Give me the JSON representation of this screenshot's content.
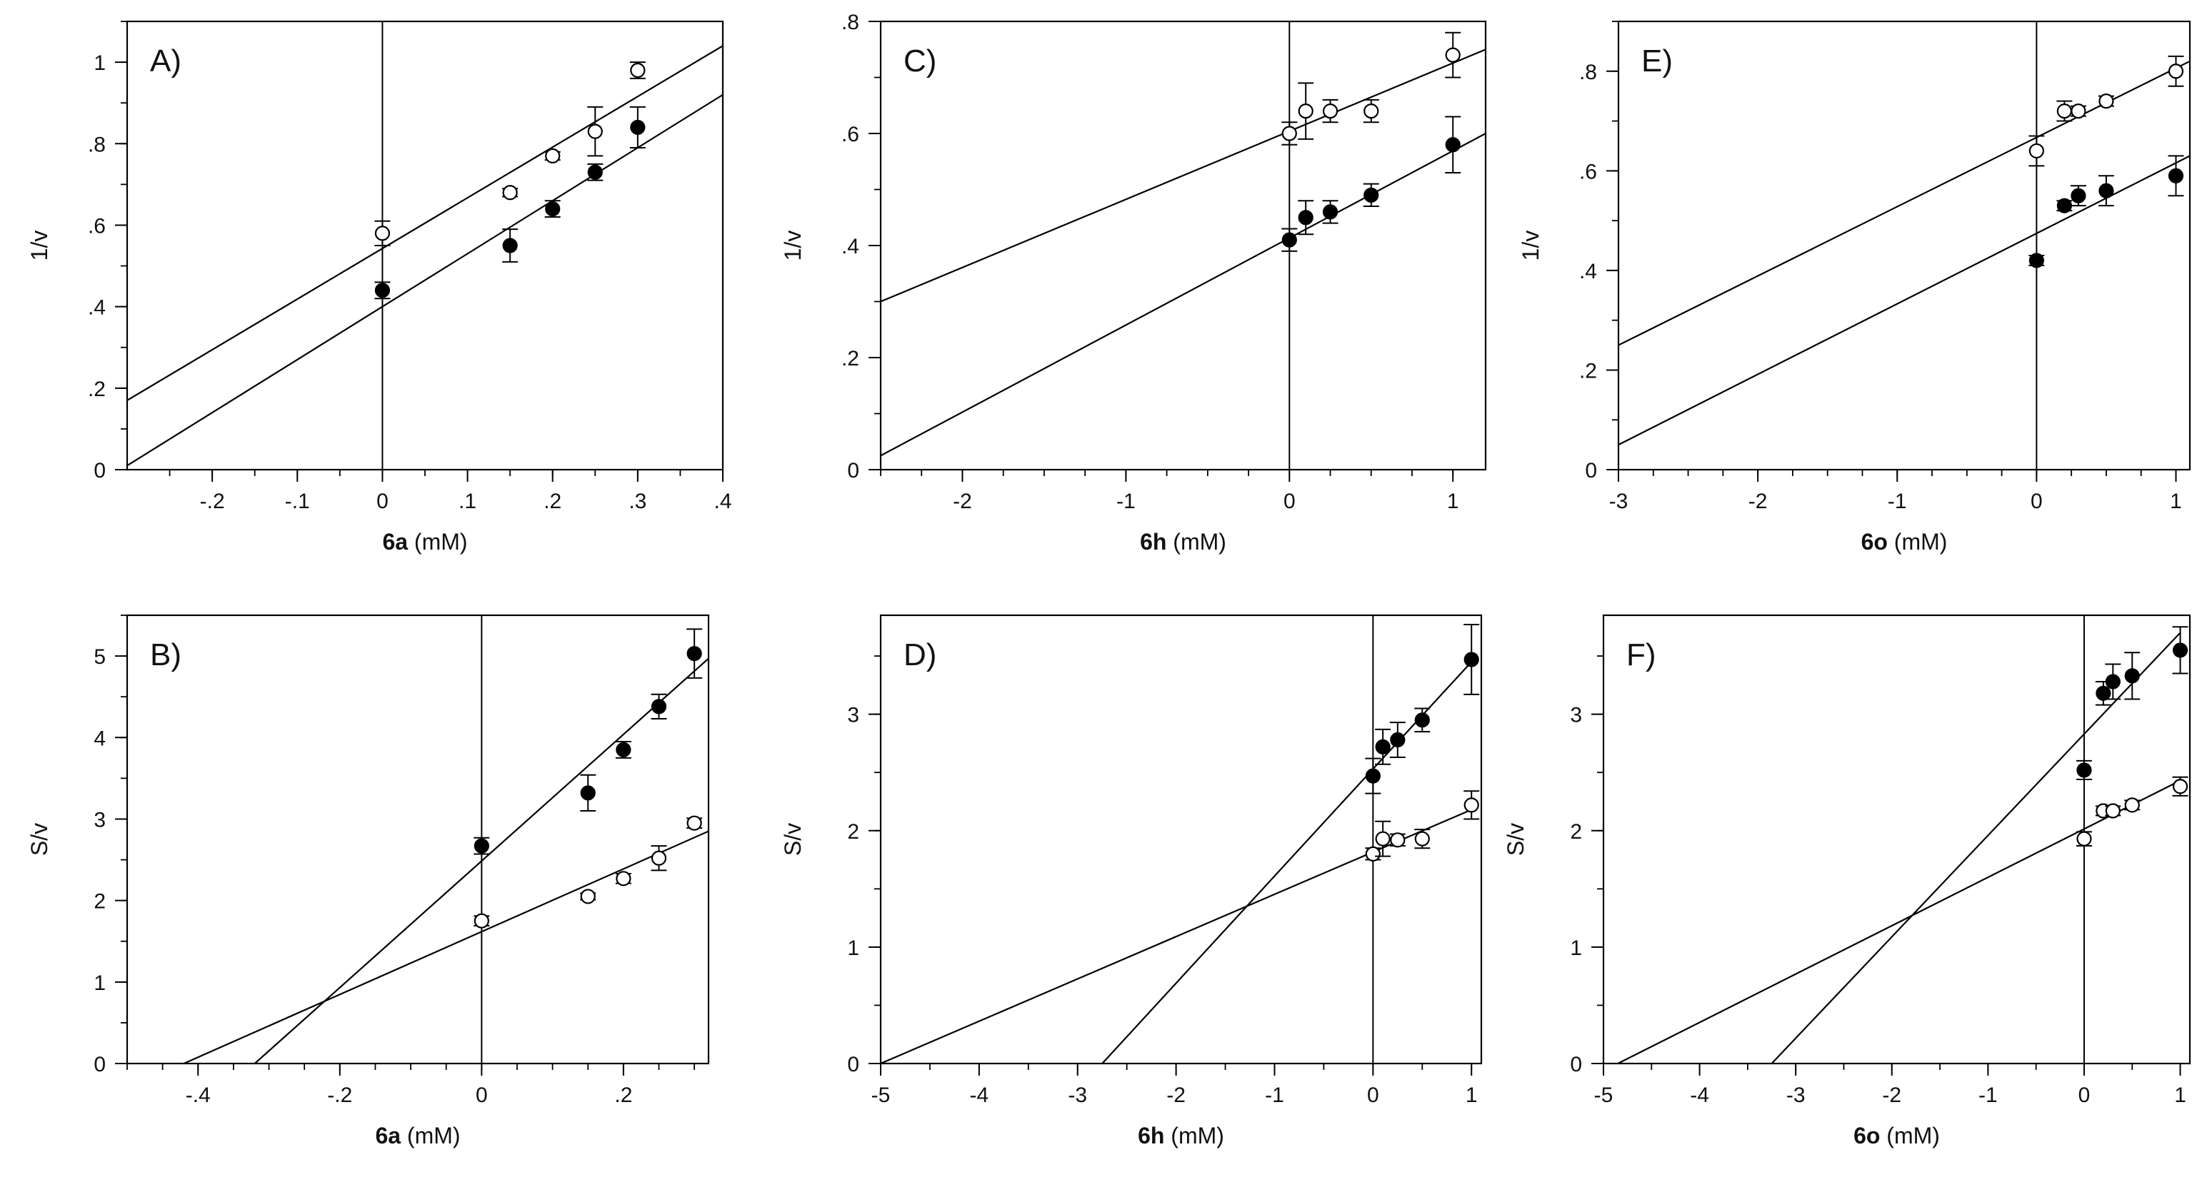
{
  "chart_data": [
    {
      "type": "scatter",
      "panel_label": "A)",
      "xlabel_bold": "6a",
      "xlabel_rest": " (mM)",
      "ylabel": "1/v",
      "xlim": [
        -0.3,
        0.4
      ],
      "ylim": [
        0,
        1.1
      ],
      "xticks": [
        -0.2,
        -0.1,
        0,
        0.1,
        0.2,
        0.3,
        0.4
      ],
      "yticks": [
        0,
        0.2,
        0.4,
        0.6,
        0.8,
        1
      ],
      "x_minor_step": 0.05,
      "y_minor_step": 0.1,
      "series": [
        {
          "name": "open",
          "marker": "open",
          "x": [
            0,
            0.15,
            0.2,
            0.25,
            0.3
          ],
          "y": [
            0.58,
            0.68,
            0.77,
            0.83,
            0.98
          ],
          "err": [
            0.03,
            0.01,
            0.01,
            0.06,
            0.02
          ],
          "fit_endpoints": [
            [
              -0.3,
              0.17
            ],
            [
              0.4,
              1.04
            ]
          ]
        },
        {
          "name": "filled",
          "marker": "filled",
          "x": [
            0,
            0.15,
            0.2,
            0.25,
            0.3
          ],
          "y": [
            0.44,
            0.55,
            0.64,
            0.73,
            0.84
          ],
          "err": [
            0.02,
            0.04,
            0.02,
            0.02,
            0.05
          ],
          "fit_endpoints": [
            [
              -0.3,
              0.01
            ],
            [
              0.4,
              0.92
            ]
          ]
        }
      ]
    },
    {
      "type": "scatter",
      "panel_label": "C)",
      "xlabel_bold": "6h",
      "xlabel_rest": " (mM)",
      "ylabel": "1/v",
      "xlim": [
        -2.5,
        1.2
      ],
      "ylim": [
        0,
        0.8
      ],
      "xticks": [
        -2,
        -1,
        0,
        1
      ],
      "yticks": [
        0,
        0.2,
        0.4,
        0.6,
        0.8
      ],
      "x_minor_step": 0.25,
      "y_minor_step": 0.1,
      "series": [
        {
          "name": "open",
          "marker": "open",
          "x": [
            0,
            0.1,
            0.25,
            0.5,
            1
          ],
          "y": [
            0.6,
            0.64,
            0.64,
            0.64,
            0.74
          ],
          "err": [
            0.02,
            0.05,
            0.02,
            0.02,
            0.04
          ],
          "fit_endpoints": [
            [
              -2.5,
              0.3
            ],
            [
              1.2,
              0.75
            ]
          ]
        },
        {
          "name": "filled",
          "marker": "filled",
          "x": [
            0,
            0.1,
            0.25,
            0.5,
            1
          ],
          "y": [
            0.41,
            0.45,
            0.46,
            0.49,
            0.58
          ],
          "err": [
            0.02,
            0.03,
            0.02,
            0.02,
            0.05
          ],
          "fit_endpoints": [
            [
              -2.5,
              0.025
            ],
            [
              1.2,
              0.6
            ]
          ]
        }
      ]
    },
    {
      "type": "scatter",
      "panel_label": "E)",
      "xlabel_bold": "6o",
      "xlabel_rest": " (mM)",
      "ylabel": "1/v",
      "xlim": [
        -3,
        1.1
      ],
      "ylim": [
        0,
        0.9
      ],
      "xticks": [
        -3,
        -2,
        -1,
        0,
        1
      ],
      "yticks": [
        0,
        0.2,
        0.4,
        0.6,
        0.8
      ],
      "x_minor_step": 0.25,
      "y_minor_step": 0.1,
      "series": [
        {
          "name": "open",
          "marker": "open",
          "x": [
            0,
            0.2,
            0.3,
            0.5,
            1
          ],
          "y": [
            0.64,
            0.72,
            0.72,
            0.74,
            0.8
          ],
          "err": [
            0.03,
            0.02,
            0.01,
            0.01,
            0.03
          ],
          "fit_endpoints": [
            [
              -3,
              0.25
            ],
            [
              1.1,
              0.82
            ]
          ]
        },
        {
          "name": "filled",
          "marker": "filled",
          "x": [
            0,
            0.2,
            0.3,
            0.5,
            1
          ],
          "y": [
            0.42,
            0.53,
            0.55,
            0.56,
            0.59
          ],
          "err": [
            0.01,
            0.01,
            0.02,
            0.03,
            0.04
          ],
          "fit_endpoints": [
            [
              -3,
              0.05
            ],
            [
              1.1,
              0.63
            ]
          ]
        }
      ]
    },
    {
      "type": "scatter",
      "panel_label": "B)",
      "xlabel_bold": "6a",
      "xlabel_rest": " (mM)",
      "ylabel": "S/v",
      "xlim": [
        -0.5,
        0.32
      ],
      "ylim": [
        0,
        5.5
      ],
      "xticks": [
        -0.4,
        -0.2,
        0,
        0.2
      ],
      "yticks": [
        0,
        1,
        2,
        3,
        4,
        5
      ],
      "x_minor_step": 0.05,
      "y_minor_step": 0.5,
      "series": [
        {
          "name": "filled",
          "marker": "filled",
          "x": [
            0,
            0.15,
            0.2,
            0.25,
            0.3
          ],
          "y": [
            2.67,
            3.32,
            3.85,
            4.38,
            5.03
          ],
          "err": [
            0.1,
            0.22,
            0.1,
            0.15,
            0.3
          ],
          "fit_endpoints": [
            [
              -0.32,
              0
            ],
            [
              0.32,
              4.97
            ]
          ]
        },
        {
          "name": "open",
          "marker": "open",
          "x": [
            0,
            0.15,
            0.2,
            0.25,
            0.3
          ],
          "y": [
            1.75,
            2.05,
            2.27,
            2.52,
            2.95
          ],
          "err": [
            0.06,
            0.04,
            0.06,
            0.15,
            0.06
          ],
          "fit_endpoints": [
            [
              -0.42,
              0
            ],
            [
              0.32,
              2.85
            ]
          ]
        }
      ]
    },
    {
      "type": "scatter",
      "panel_label": "D)",
      "xlabel_bold": "6h",
      "xlabel_rest": " (mM)",
      "ylabel": "S/v",
      "xlim": [
        -5,
        1.1
      ],
      "ylim": [
        0,
        3.85
      ],
      "xticks": [
        -5,
        -4,
        -3,
        -2,
        -1,
        0,
        1
      ],
      "yticks": [
        0,
        1,
        2,
        3
      ],
      "x_minor_step": 0.5,
      "y_minor_step": 0.5,
      "series": [
        {
          "name": "filled",
          "marker": "filled",
          "x": [
            0,
            0.1,
            0.25,
            0.5,
            1
          ],
          "y": [
            2.47,
            2.72,
            2.78,
            2.95,
            3.47
          ],
          "err": [
            0.15,
            0.15,
            0.15,
            0.1,
            0.3
          ],
          "fit_endpoints": [
            [
              -2.75,
              0
            ],
            [
              1,
              3.45
            ]
          ]
        },
        {
          "name": "open",
          "marker": "open",
          "x": [
            0,
            0.1,
            0.25,
            0.5,
            1
          ],
          "y": [
            1.8,
            1.93,
            1.92,
            1.93,
            2.22
          ],
          "err": [
            0.05,
            0.15,
            0.05,
            0.08,
            0.12
          ],
          "fit_endpoints": [
            [
              -5,
              0
            ],
            [
              1,
              2.18
            ]
          ]
        }
      ]
    },
    {
      "type": "scatter",
      "panel_label": "F)",
      "xlabel_bold": "6o",
      "xlabel_rest": " (mM)",
      "ylabel": "S/v",
      "xlim": [
        -5,
        1.1
      ],
      "ylim": [
        0,
        3.85
      ],
      "xticks": [
        -5,
        -4,
        -3,
        -2,
        -1,
        0,
        1
      ],
      "yticks": [
        0,
        1,
        2,
        3
      ],
      "x_minor_step": 0.5,
      "y_minor_step": 0.5,
      "series": [
        {
          "name": "filled",
          "marker": "filled",
          "x": [
            0,
            0.2,
            0.3,
            0.5,
            1
          ],
          "y": [
            2.52,
            3.18,
            3.28,
            3.33,
            3.55
          ],
          "err": [
            0.08,
            0.1,
            0.15,
            0.2,
            0.2
          ],
          "fit_endpoints": [
            [
              -3.25,
              0
            ],
            [
              1,
              3.7
            ]
          ]
        },
        {
          "name": "open",
          "marker": "open",
          "x": [
            0,
            0.2,
            0.3,
            0.5,
            1
          ],
          "y": [
            1.93,
            2.17,
            2.17,
            2.22,
            2.38
          ],
          "err": [
            0.06,
            0.04,
            0.04,
            0.04,
            0.08
          ],
          "fit_endpoints": [
            [
              -4.85,
              0
            ],
            [
              1,
              2.43
            ]
          ]
        }
      ]
    }
  ]
}
